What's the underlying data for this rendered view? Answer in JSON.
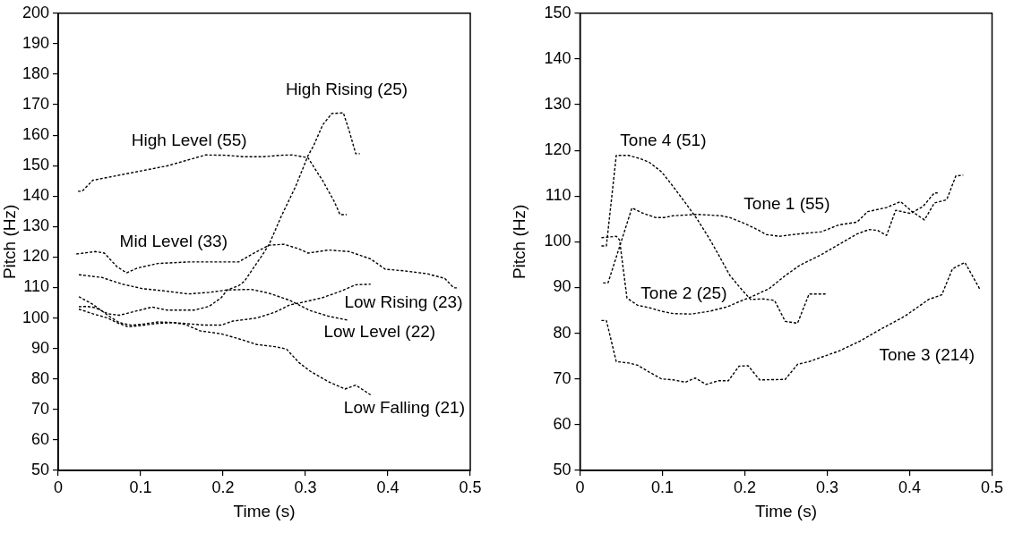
{
  "chart_data": [
    {
      "type": "line",
      "xlabel": "Time (s)",
      "ylabel": "Pitch (Hz)",
      "xlim": [
        0,
        0.5
      ],
      "xticks": [
        0,
        0.1,
        0.2,
        0.3,
        0.4,
        0.5
      ],
      "ylim": [
        50,
        200
      ],
      "yticks": [
        50,
        60,
        70,
        80,
        90,
        100,
        110,
        120,
        130,
        140,
        150,
        160,
        170,
        180,
        190,
        200
      ],
      "grid": false,
      "legend": false,
      "marker": "none",
      "line_style": "dashed",
      "series": [
        {
          "name": "High Level (55)",
          "color": "#000000",
          "x": [
            0.024,
            0.029,
            0.042,
            0.067,
            0.103,
            0.132,
            0.154,
            0.179,
            0.204,
            0.226,
            0.248,
            0.27,
            0.284,
            0.297,
            0.303,
            0.321,
            0.335,
            0.342,
            0.35
          ],
          "values": [
            141.6,
            141.6,
            145.2,
            146.5,
            148.4,
            149.9,
            151.6,
            153.5,
            153.4,
            152.9,
            152.9,
            153.4,
            153.5,
            152.9,
            152.6,
            145.0,
            138.2,
            133.9,
            133.9
          ]
        },
        {
          "name": "High Rising (25)",
          "color": "#000000",
          "x": [
            0.025,
            0.035,
            0.045,
            0.06,
            0.074,
            0.089,
            0.114,
            0.132,
            0.165,
            0.183,
            0.198,
            0.205,
            0.219,
            0.226,
            0.248,
            0.256,
            0.27,
            0.288,
            0.303,
            0.31,
            0.321,
            0.332,
            0.346,
            0.353,
            0.361,
            0.366
          ],
          "values": [
            103.7,
            103.8,
            103.4,
            101.4,
            100.9,
            101.9,
            103.6,
            102.6,
            102.6,
            103.8,
            106.7,
            109.2,
            110.6,
            112.1,
            120.8,
            124.2,
            133.0,
            143.1,
            153.2,
            156.6,
            163.4,
            167.1,
            167.3,
            161.5,
            153.9,
            153.9
          ]
        },
        {
          "name": "Mid Level (33)",
          "color": "#000000",
          "x": [
            0.022,
            0.045,
            0.056,
            0.071,
            0.083,
            0.096,
            0.121,
            0.158,
            0.194,
            0.219,
            0.241,
            0.256,
            0.274,
            0.292,
            0.303,
            0.328,
            0.353,
            0.379,
            0.397,
            0.419,
            0.448,
            0.469,
            0.48,
            0.486
          ],
          "values": [
            121.0,
            121.8,
            121.3,
            116.9,
            114.8,
            116.4,
            117.9,
            118.4,
            118.4,
            118.4,
            121.8,
            123.9,
            124.2,
            122.7,
            121.3,
            122.3,
            121.8,
            119.4,
            116.0,
            115.5,
            114.5,
            113.0,
            109.9,
            109.9
          ]
        },
        {
          "name": "Low Level (22)",
          "color": "#000000",
          "x": [
            0.025,
            0.053,
            0.078,
            0.103,
            0.125,
            0.158,
            0.183,
            0.205,
            0.234,
            0.255,
            0.281,
            0.306,
            0.328,
            0.351
          ],
          "values": [
            114.2,
            113.3,
            111.1,
            109.6,
            109.0,
            107.9,
            108.4,
            109.2,
            109.4,
            108.2,
            105.8,
            102.4,
            100.6,
            99.3
          ]
        },
        {
          "name": "Low Rising (23)",
          "color": "#000000",
          "x": [
            0.025,
            0.042,
            0.06,
            0.071,
            0.085,
            0.103,
            0.118,
            0.14,
            0.154,
            0.176,
            0.198,
            0.212,
            0.241,
            0.263,
            0.281,
            0.299,
            0.321,
            0.342,
            0.361,
            0.379
          ],
          "values": [
            102.9,
            101.4,
            100.0,
            98.5,
            97.1,
            97.6,
            98.2,
            98.5,
            98.2,
            97.7,
            97.7,
            99.0,
            100.0,
            101.9,
            104.3,
            105.3,
            106.7,
            108.7,
            110.9,
            111.1
          ]
        },
        {
          "name": "Low Falling (21)",
          "color": "#000000",
          "x": [
            0.025,
            0.042,
            0.06,
            0.074,
            0.089,
            0.103,
            0.121,
            0.14,
            0.154,
            0.172,
            0.198,
            0.219,
            0.241,
            0.263,
            0.277,
            0.292,
            0.306,
            0.328,
            0.348,
            0.361,
            0.379
          ],
          "values": [
            107.0,
            104.5,
            100.9,
            98.5,
            97.6,
            98.0,
            98.7,
            98.5,
            97.9,
            95.8,
            94.8,
            93.2,
            91.3,
            90.6,
            89.8,
            85.4,
            82.5,
            79.1,
            76.7,
            78.0,
            74.8
          ]
        }
      ]
    },
    {
      "type": "line",
      "xlabel": "Time (s)",
      "ylabel": "Pitch (Hz)",
      "xlim": [
        0,
        0.5
      ],
      "xticks": [
        0,
        0.1,
        0.2,
        0.3,
        0.4,
        0.5
      ],
      "ylim": [
        50,
        150
      ],
      "yticks": [
        50,
        60,
        70,
        80,
        90,
        100,
        110,
        120,
        130,
        140,
        150
      ],
      "grid": false,
      "legend": false,
      "marker": "none",
      "line_style": "dashed",
      "series": [
        {
          "name": "Tone 1 (55)",
          "color": "#000000",
          "x": [
            0.028,
            0.034,
            0.063,
            0.077,
            0.092,
            0.102,
            0.113,
            0.142,
            0.171,
            0.182,
            0.2,
            0.215,
            0.226,
            0.242,
            0.264,
            0.293,
            0.314,
            0.336,
            0.349,
            0.372,
            0.389,
            0.403,
            0.418,
            0.43,
            0.445,
            0.456,
            0.465
          ],
          "values": [
            91.0,
            91.0,
            107.4,
            106.2,
            105.3,
            105.3,
            105.7,
            106.0,
            105.7,
            105.3,
            104.0,
            102.7,
            101.6,
            101.2,
            101.7,
            102.2,
            103.7,
            104.3,
            106.6,
            107.5,
            108.8,
            106.6,
            104.8,
            108.5,
            109.2,
            114.4,
            114.6
          ]
        },
        {
          "name": "Tone 2 (25)",
          "color": "#000000",
          "x": [
            0.026,
            0.044,
            0.048,
            0.057,
            0.07,
            0.084,
            0.099,
            0.113,
            0.135,
            0.157,
            0.179,
            0.193,
            0.207,
            0.229,
            0.249,
            0.267,
            0.293,
            0.314,
            0.336,
            0.351,
            0.361,
            0.372,
            0.383,
            0.401,
            0.416,
            0.43,
            0.434
          ],
          "values": [
            100.9,
            101.2,
            100.4,
            87.7,
            86.1,
            85.6,
            84.8,
            84.3,
            84.2,
            84.8,
            85.8,
            86.9,
            87.9,
            89.7,
            92.6,
            94.9,
            97.2,
            99.4,
            101.7,
            102.7,
            102.5,
            101.4,
            106.9,
            106.2,
            107.7,
            110.7,
            110.7
          ]
        },
        {
          "name": "Tone 3 (214)",
          "color": "#000000",
          "x": [
            0.026,
            0.032,
            0.044,
            0.059,
            0.07,
            0.084,
            0.099,
            0.113,
            0.128,
            0.14,
            0.153,
            0.168,
            0.18,
            0.193,
            0.204,
            0.218,
            0.249,
            0.264,
            0.278,
            0.314,
            0.34,
            0.365,
            0.394,
            0.423,
            0.439,
            0.452,
            0.467,
            0.485
          ],
          "values": [
            82.8,
            82.8,
            73.8,
            73.5,
            73.0,
            71.5,
            70.0,
            69.8,
            69.3,
            70.2,
            68.8,
            69.6,
            69.6,
            72.8,
            72.9,
            69.8,
            69.9,
            73.2,
            73.8,
            76.1,
            78.3,
            80.9,
            83.7,
            87.4,
            88.4,
            94.1,
            95.5,
            89.7
          ]
        },
        {
          "name": "Tone 4 (51)",
          "color": "#000000",
          "x": [
            0.026,
            0.032,
            0.044,
            0.059,
            0.073,
            0.084,
            0.099,
            0.113,
            0.128,
            0.142,
            0.157,
            0.168,
            0.182,
            0.197,
            0.207,
            0.222,
            0.236,
            0.249,
            0.264,
            0.278,
            0.298
          ],
          "values": [
            99.1,
            99.1,
            118.9,
            118.9,
            118.2,
            117.4,
            115.3,
            112.1,
            108.5,
            105.0,
            100.7,
            97.2,
            92.6,
            89.4,
            87.4,
            87.5,
            87.2,
            82.6,
            82.2,
            88.6,
            88.6
          ]
        }
      ]
    }
  ]
}
